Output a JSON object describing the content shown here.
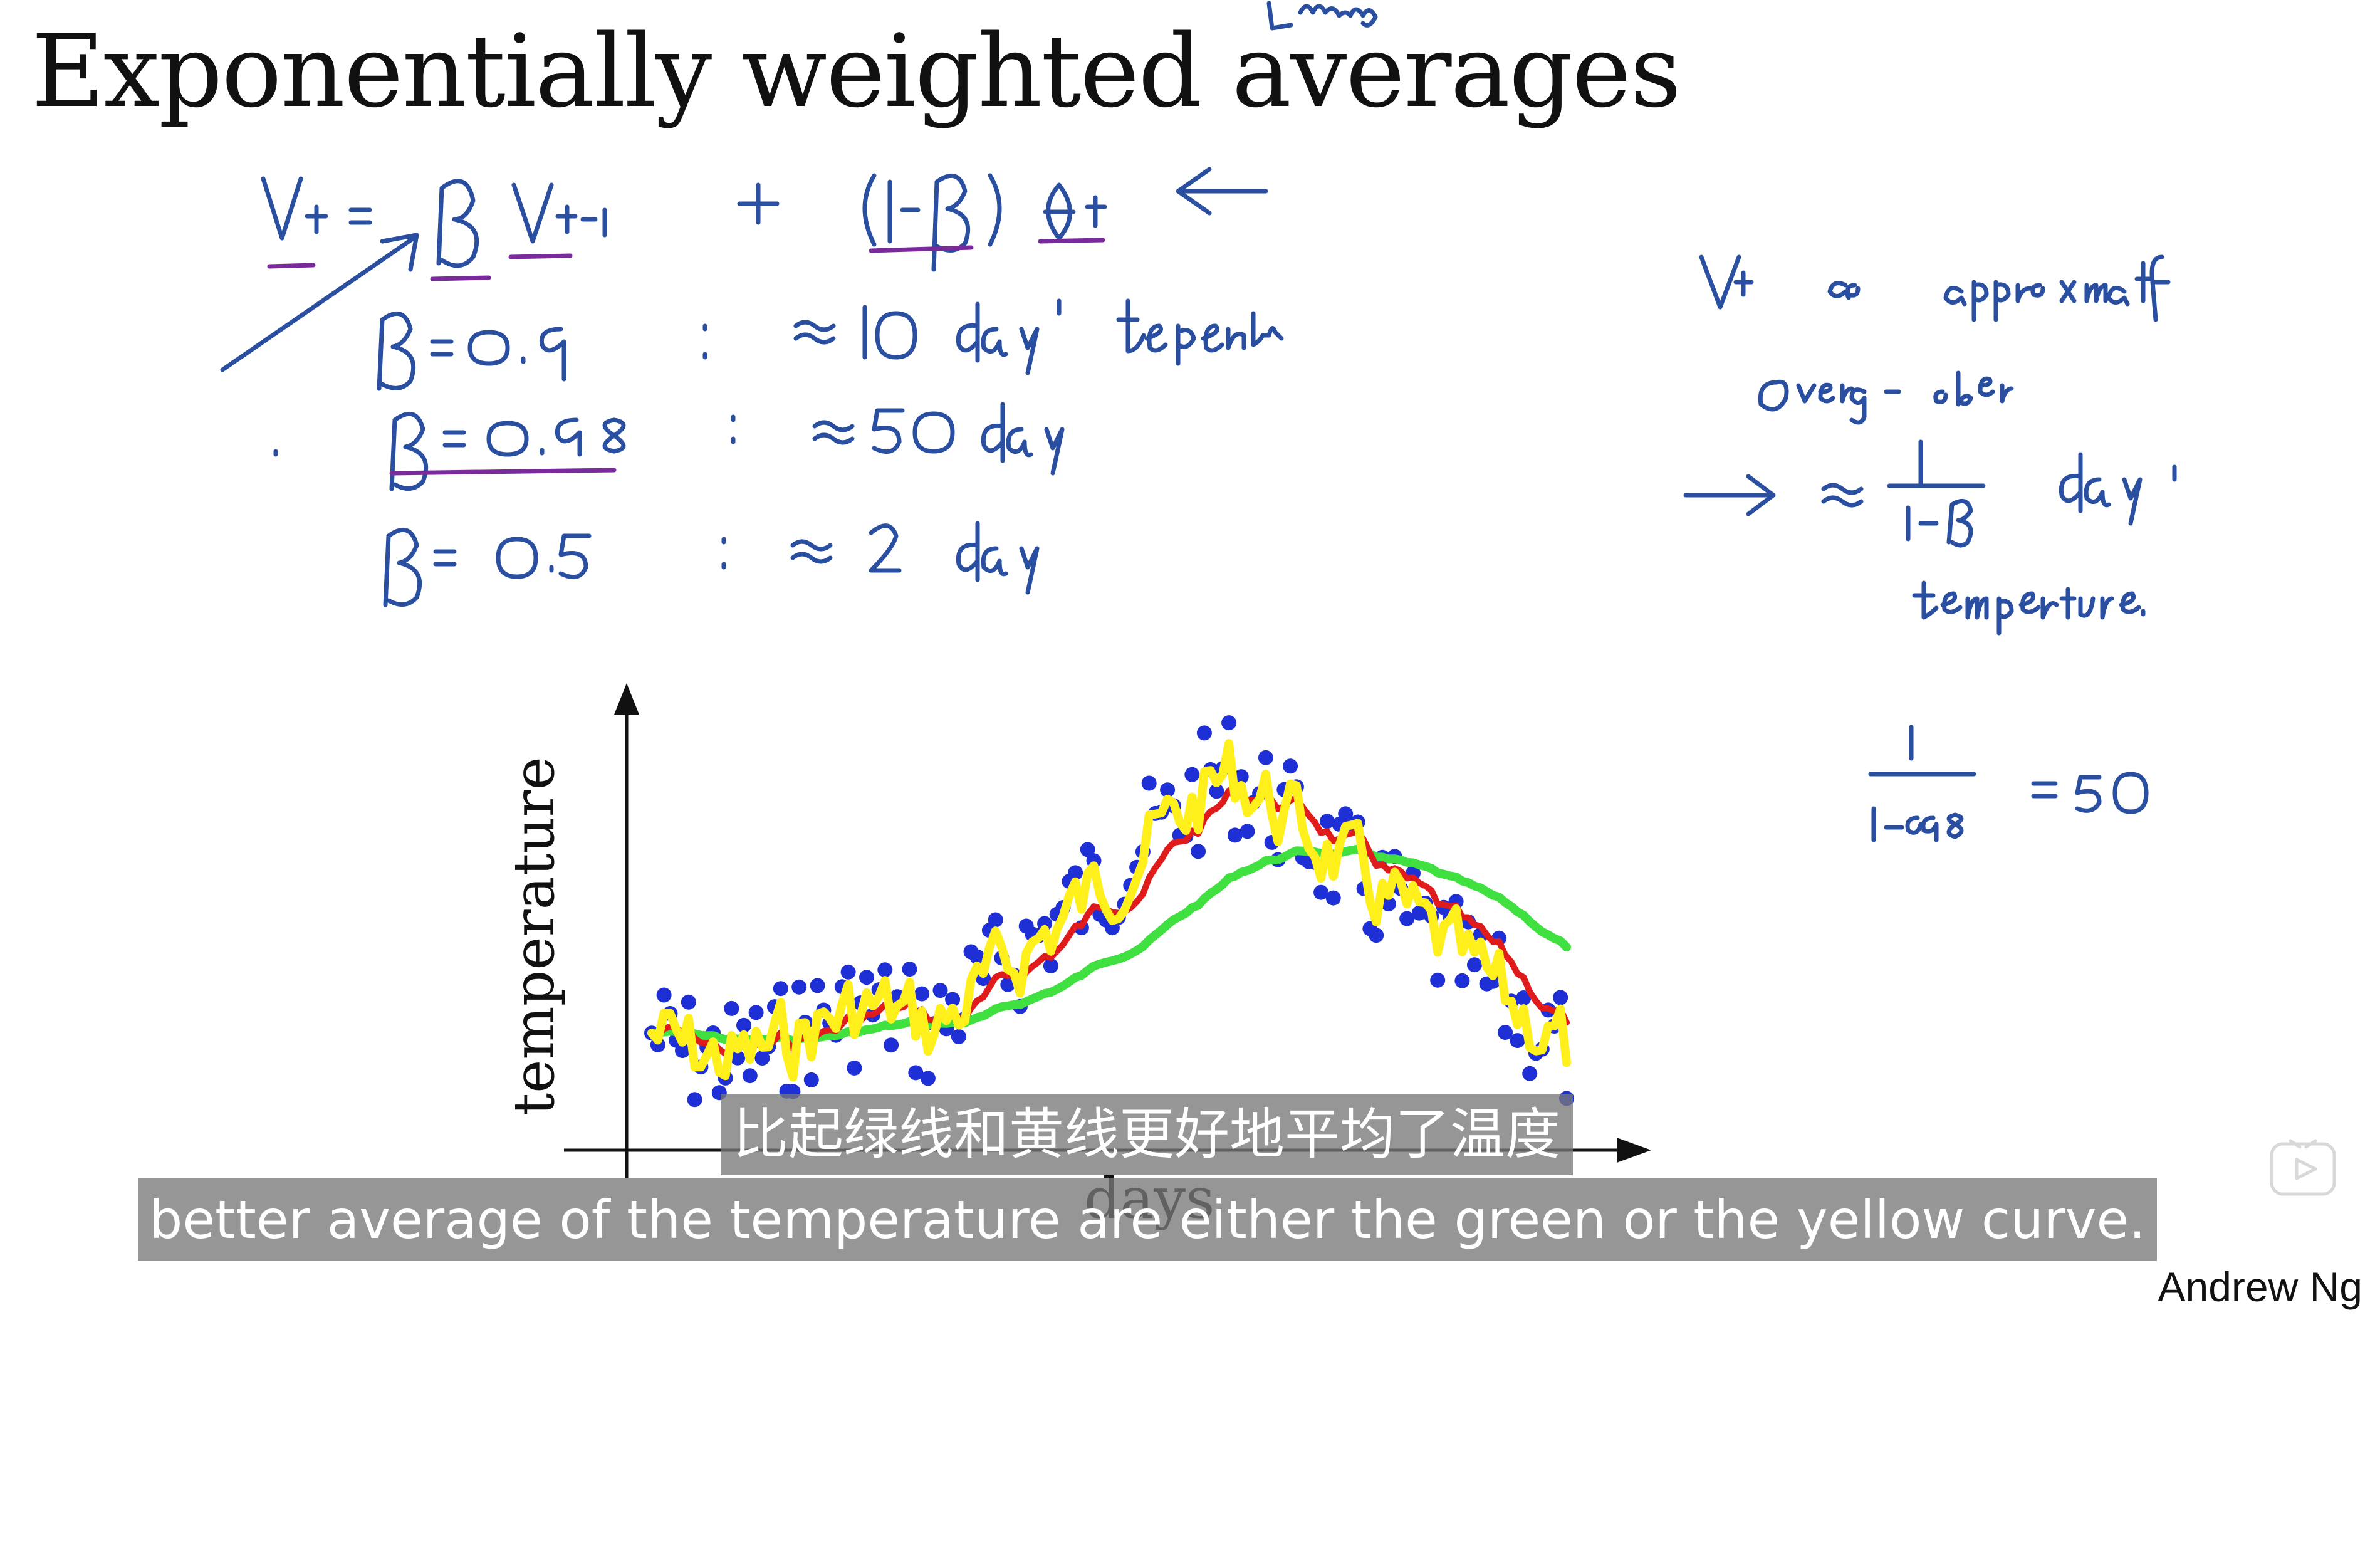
{
  "slide": {
    "title": "Exponentially weighted averages",
    "handwritten_note_above_title": "moving"
  },
  "board_notes": {
    "formula": "Vt = β Vt-1 + (1-β) θt",
    "examples": [
      {
        "beta": "β = 0.9",
        "sep": ":",
        "approx": "≈ 10 days' temperature."
      },
      {
        "beta": "β = 0.98",
        "sep": ":",
        "approx": "≈ 50 days"
      },
      {
        "beta": "β = 0.5",
        "sep": ":",
        "approx": "≈ 2 days"
      }
    ],
    "right_note_lines": [
      "Vt as approximately",
      "average over",
      "→ ≈ 1/(1-β) days'",
      "temperature."
    ],
    "calc": "1/(1-0.98) = 50"
  },
  "plot": {
    "ylabel": "temperature",
    "xlabel": "days",
    "colors": {
      "points": "#1f2fd6",
      "red": "#e01b1b",
      "green": "#3fe03f",
      "yellow": "#ffef1a",
      "ink_blue": "#2a4fa0",
      "ink_purple": "#7a2a9a"
    }
  },
  "subtitles": {
    "chinese": "比起绿线和黄线更好地平均了温度",
    "english": "better average of the temperature are either the green or the yellow curve."
  },
  "author": "Andrew Ng",
  "controls": {
    "play_icon": "play-icon"
  }
}
